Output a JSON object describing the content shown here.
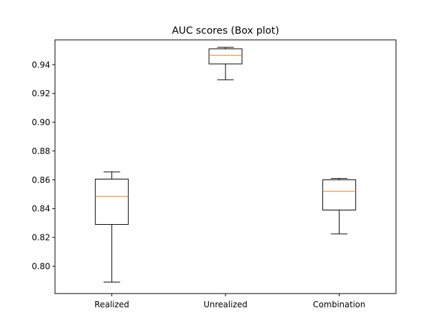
{
  "chart_data": {
    "type": "box",
    "title": "AUC scores (Box plot)",
    "xlabel": "",
    "ylabel": "",
    "categories": [
      "Realized",
      "Unrealized",
      "Combination"
    ],
    "boxes": [
      {
        "label": "Realized",
        "whisker_low": 0.789,
        "q1": 0.829,
        "median": 0.8485,
        "q3": 0.8605,
        "whisker_high": 0.8655
      },
      {
        "label": "Unrealized",
        "whisker_low": 0.9295,
        "q1": 0.9405,
        "median": 0.9465,
        "q3": 0.951,
        "whisker_high": 0.952
      },
      {
        "label": "Combination",
        "whisker_low": 0.8225,
        "q1": 0.839,
        "median": 0.852,
        "q3": 0.86,
        "whisker_high": 0.861
      }
    ],
    "yticks": [
      "0.80",
      "0.82",
      "0.84",
      "0.86",
      "0.88",
      "0.90",
      "0.92",
      "0.94"
    ],
    "ylim": [
      0.781,
      0.9572
    ],
    "grid": false,
    "legend": "none",
    "colors": {
      "box": "#000000",
      "median": "#ff7f0e",
      "axes": "#000000",
      "background": "#ffffff"
    }
  }
}
